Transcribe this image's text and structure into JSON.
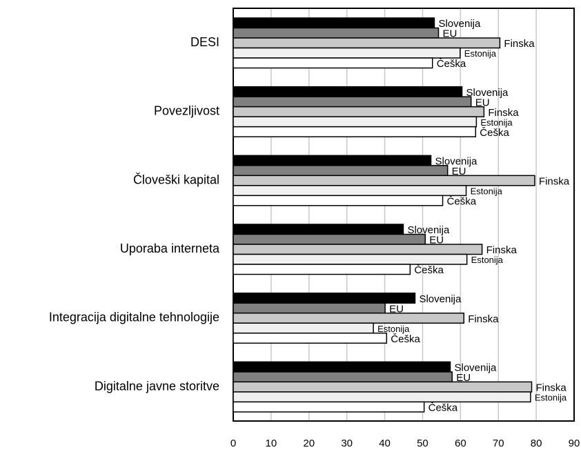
{
  "chart_data": {
    "type": "hbar",
    "categories": [
      "DESI",
      "Povezljivost",
      "Človeški kapital",
      "Uporaba interneta",
      "Integracija digitalne tehnologije",
      "Digitalne javne storitve"
    ],
    "series": [
      {
        "name": "Slovenija",
        "color": "#000000",
        "values": [
          53.1,
          60.4,
          52.2,
          44.9,
          48.0,
          57.3
        ]
      },
      {
        "name": "EU",
        "color": "#808080",
        "values": [
          54.2,
          62.8,
          56.6,
          50.7,
          40.1,
          57.8
        ]
      },
      {
        "name": "Finska",
        "color": "#c8c8c8",
        "values": [
          70.4,
          66.2,
          79.6,
          65.7,
          60.9,
          78.8
        ]
      },
      {
        "name": "Estonija",
        "color": "#f0f0f0",
        "values": [
          59.9,
          64.2,
          61.5,
          61.7,
          37.0,
          78.5
        ]
      },
      {
        "name": "Češka",
        "color": "#ffffff",
        "values": [
          52.6,
          64.0,
          55.3,
          46.7,
          40.5,
          50.4
        ]
      }
    ],
    "xlim": [
      0,
      90
    ],
    "xticks": [
      0,
      10,
      20,
      30,
      40,
      50,
      60,
      70,
      80,
      90
    ],
    "grid": true
  }
}
